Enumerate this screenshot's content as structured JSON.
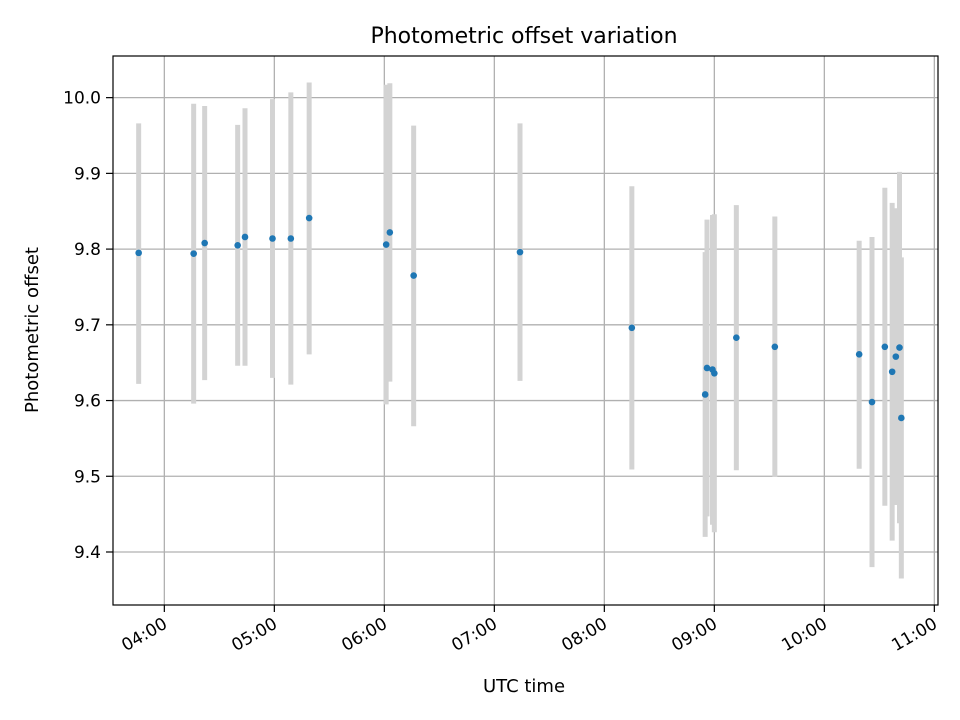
{
  "chart_data": {
    "type": "scatter",
    "title": "Photometric offset variation",
    "xlabel": "UTC time",
    "ylabel": "Photometric offset",
    "x_unit": "UTC time (HH:MM)",
    "xlim": [
      "03:32",
      "11:02"
    ],
    "ylim": [
      9.33,
      10.055
    ],
    "x_ticks": [
      "04:00",
      "05:00",
      "06:00",
      "07:00",
      "08:00",
      "09:00",
      "10:00",
      "11:00"
    ],
    "y_ticks": [
      9.4,
      9.5,
      9.6,
      9.7,
      9.8,
      9.9,
      10.0
    ],
    "grid": true,
    "legend": "none",
    "point_color": "#1f77b4",
    "errorbar_color": "#d3d3d3",
    "points": [
      {
        "x": "03:46",
        "y": 9.795,
        "ylow": 9.622,
        "yhigh": 9.966
      },
      {
        "x": "04:16",
        "y": 9.794,
        "ylow": 9.596,
        "yhigh": 9.992
      },
      {
        "x": "04:22",
        "y": 9.808,
        "ylow": 9.627,
        "yhigh": 9.989
      },
      {
        "x": "04:40",
        "y": 9.805,
        "ylow": 9.646,
        "yhigh": 9.964
      },
      {
        "x": "04:44",
        "y": 9.816,
        "ylow": 9.646,
        "yhigh": 9.986
      },
      {
        "x": "04:59",
        "y": 9.814,
        "ylow": 9.63,
        "yhigh": 9.998
      },
      {
        "x": "05:09",
        "y": 9.814,
        "ylow": 9.621,
        "yhigh": 10.007
      },
      {
        "x": "05:19",
        "y": 9.841,
        "ylow": 9.661,
        "yhigh": 10.02
      },
      {
        "x": "06:01",
        "y": 9.806,
        "ylow": 9.595,
        "yhigh": 10.017
      },
      {
        "x": "06:03",
        "y": 9.822,
        "ylow": 9.625,
        "yhigh": 10.019
      },
      {
        "x": "06:16",
        "y": 9.765,
        "ylow": 9.566,
        "yhigh": 9.963
      },
      {
        "x": "07:14",
        "y": 9.796,
        "ylow": 9.626,
        "yhigh": 9.966
      },
      {
        "x": "08:15",
        "y": 9.696,
        "ylow": 9.509,
        "yhigh": 9.883
      },
      {
        "x": "08:55",
        "y": 9.608,
        "ylow": 9.42,
        "yhigh": 9.796
      },
      {
        "x": "08:56",
        "y": 9.643,
        "ylow": 9.447,
        "yhigh": 9.839
      },
      {
        "x": "08:59",
        "y": 9.641,
        "ylow": 9.436,
        "yhigh": 9.845
      },
      {
        "x": "09:00",
        "y": 9.636,
        "ylow": 9.426,
        "yhigh": 9.846
      },
      {
        "x": "09:12",
        "y": 9.683,
        "ylow": 9.508,
        "yhigh": 9.858
      },
      {
        "x": "09:33",
        "y": 9.671,
        "ylow": 9.499,
        "yhigh": 9.843
      },
      {
        "x": "10:19",
        "y": 9.661,
        "ylow": 9.51,
        "yhigh": 9.811
      },
      {
        "x": "10:26",
        "y": 9.598,
        "ylow": 9.38,
        "yhigh": 9.816
      },
      {
        "x": "10:33",
        "y": 9.671,
        "ylow": 9.461,
        "yhigh": 9.881
      },
      {
        "x": "10:37",
        "y": 9.638,
        "ylow": 9.415,
        "yhigh": 9.861
      },
      {
        "x": "10:39",
        "y": 9.658,
        "ylow": 9.462,
        "yhigh": 9.854
      },
      {
        "x": "10:41",
        "y": 9.67,
        "ylow": 9.438,
        "yhigh": 9.902
      },
      {
        "x": "10:42",
        "y": 9.577,
        "ylow": 9.365,
        "yhigh": 9.789
      }
    ]
  }
}
